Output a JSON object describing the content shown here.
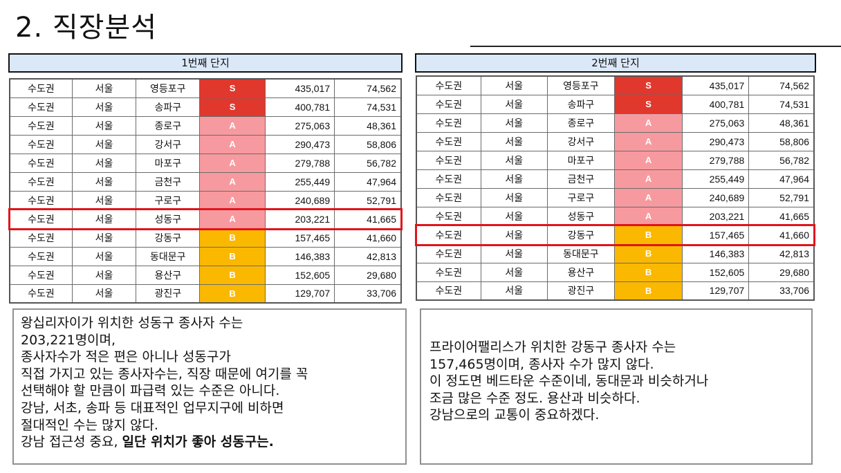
{
  "title": "2. 직장분석",
  "left": {
    "header": "1번째 단지",
    "highlight_index": 7,
    "rows": [
      {
        "region": "수도권",
        "city": "서울",
        "district": "영등포구",
        "grade": "S",
        "workers": "435,017",
        "companies": "74,562"
      },
      {
        "region": "수도권",
        "city": "서울",
        "district": "송파구",
        "grade": "S",
        "workers": "400,781",
        "companies": "74,531"
      },
      {
        "region": "수도권",
        "city": "서울",
        "district": "종로구",
        "grade": "A",
        "workers": "275,063",
        "companies": "48,361"
      },
      {
        "region": "수도권",
        "city": "서울",
        "district": "강서구",
        "grade": "A",
        "workers": "290,473",
        "companies": "58,806"
      },
      {
        "region": "수도권",
        "city": "서울",
        "district": "마포구",
        "grade": "A",
        "workers": "279,788",
        "companies": "56,782"
      },
      {
        "region": "수도권",
        "city": "서울",
        "district": "금천구",
        "grade": "A",
        "workers": "255,449",
        "companies": "47,964"
      },
      {
        "region": "수도권",
        "city": "서울",
        "district": "구로구",
        "grade": "A",
        "workers": "240,689",
        "companies": "52,791"
      },
      {
        "region": "수도권",
        "city": "서울",
        "district": "성동구",
        "grade": "A",
        "workers": "203,221",
        "companies": "41,665"
      },
      {
        "region": "수도권",
        "city": "서울",
        "district": "강동구",
        "grade": "B",
        "workers": "157,465",
        "companies": "41,660"
      },
      {
        "region": "수도권",
        "city": "서울",
        "district": "동대문구",
        "grade": "B",
        "workers": "146,383",
        "companies": "42,813"
      },
      {
        "region": "수도권",
        "city": "서울",
        "district": "용산구",
        "grade": "B",
        "workers": "152,605",
        "companies": "29,680"
      },
      {
        "region": "수도권",
        "city": "서울",
        "district": "광진구",
        "grade": "B",
        "workers": "129,707",
        "companies": "33,706"
      }
    ],
    "note": [
      {
        "text": "왕십리자이가 위치한 성동구 종사자 수는"
      },
      {
        "text": "203,221명이며,"
      },
      {
        "text": "종사자수가 적은 편은 아니나 성동구가"
      },
      {
        "text": "직접 가지고 있는 종사자수는, 직장 때문에 여기를 꼭"
      },
      {
        "text": "선택해야 할 만큼이 파급력 있는 수준은 아니다."
      },
      {
        "text": "강남, 서초, 송파 등 대표적인 업무지구에 비하면"
      },
      {
        "text": "절대적인 수는 많지 않다."
      },
      {
        "text": "강남 접근성 중요, ",
        "bold": "일단 위치가 좋아 성동구는."
      }
    ]
  },
  "right": {
    "header": "2번째 단지",
    "highlight_index": 8,
    "rows": [
      {
        "region": "수도권",
        "city": "서울",
        "district": "영등포구",
        "grade": "S",
        "workers": "435,017",
        "companies": "74,562"
      },
      {
        "region": "수도권",
        "city": "서울",
        "district": "송파구",
        "grade": "S",
        "workers": "400,781",
        "companies": "74,531"
      },
      {
        "region": "수도권",
        "city": "서울",
        "district": "종로구",
        "grade": "A",
        "workers": "275,063",
        "companies": "48,361"
      },
      {
        "region": "수도권",
        "city": "서울",
        "district": "강서구",
        "grade": "A",
        "workers": "290,473",
        "companies": "58,806"
      },
      {
        "region": "수도권",
        "city": "서울",
        "district": "마포구",
        "grade": "A",
        "workers": "279,788",
        "companies": "56,782"
      },
      {
        "region": "수도권",
        "city": "서울",
        "district": "금천구",
        "grade": "A",
        "workers": "255,449",
        "companies": "47,964"
      },
      {
        "region": "수도권",
        "city": "서울",
        "district": "구로구",
        "grade": "A",
        "workers": "240,689",
        "companies": "52,791"
      },
      {
        "region": "수도권",
        "city": "서울",
        "district": "성동구",
        "grade": "A",
        "workers": "203,221",
        "companies": "41,665"
      },
      {
        "region": "수도권",
        "city": "서울",
        "district": "강동구",
        "grade": "B",
        "workers": "157,465",
        "companies": "41,660"
      },
      {
        "region": "수도권",
        "city": "서울",
        "district": "동대문구",
        "grade": "B",
        "workers": "146,383",
        "companies": "42,813"
      },
      {
        "region": "수도권",
        "city": "서울",
        "district": "용산구",
        "grade": "B",
        "workers": "152,605",
        "companies": "29,680"
      },
      {
        "region": "수도권",
        "city": "서울",
        "district": "광진구",
        "grade": "B",
        "workers": "129,707",
        "companies": "33,706"
      }
    ],
    "note": [
      {
        "text": "프라이어팰리스가 위치한 강동구 종사자 수는"
      },
      {
        "text": "157,465명이며, 종사자 수가 많지 않다."
      },
      {
        "text": "이 정도면 베드타운 수준이네, 동대문과 비슷하거나"
      },
      {
        "text": "조금 많은 수준 정도. 용산과 비슷하다."
      },
      {
        "text": "강남으로의 교통이 중요하겠다."
      }
    ]
  },
  "colors": {
    "S": "#e0382d",
    "A": "#f79a9f",
    "B": "#fbb800",
    "highlight": "#e0141b",
    "header_bg": "#dbe8f7"
  }
}
